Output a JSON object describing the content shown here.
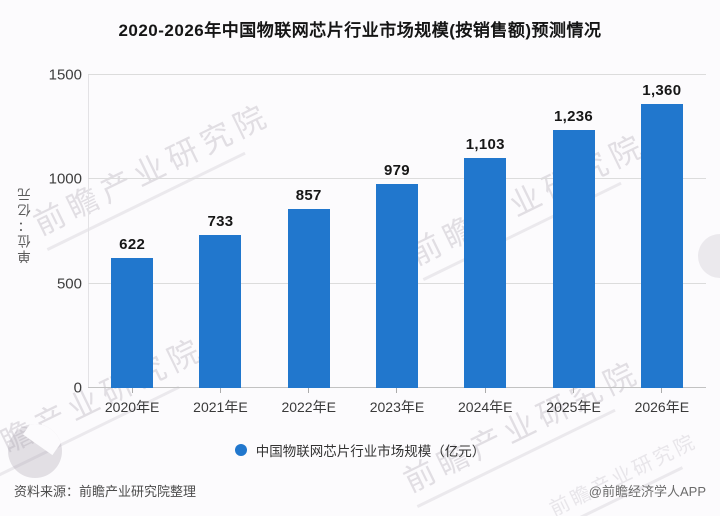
{
  "title": "2020-2026年中国物联网芯片行业市场规模(按销售额)预测情况",
  "chart_data": {
    "type": "bar",
    "title": "2020-2026年中国物联网芯片行业市场规模(按销售额)预测情况",
    "categories": [
      "2020年E",
      "2021年E",
      "2022年E",
      "2023年E",
      "2024年E",
      "2025年E",
      "2026年E"
    ],
    "values": [
      622,
      733,
      857,
      979,
      1103,
      1236,
      1360
    ],
    "value_labels": [
      "622",
      "733",
      "857",
      "979",
      "1,103",
      "1,236",
      "1,360"
    ],
    "xlabel": "",
    "ylabel": "单位：亿元",
    "ylim": [
      0,
      1500
    ],
    "yticks": [
      0,
      500,
      1000,
      1500
    ],
    "grid": true,
    "legend_position": "bottom",
    "bar_color": "#2177cd"
  },
  "legend": {
    "label": "中国物联网芯片行业市场规模（亿元）"
  },
  "footer": {
    "source": "资料来源：前瞻产业研究院整理",
    "credit": "@前瞻经济学人APP"
  },
  "watermark": {
    "text": "前瞻产业研究院"
  },
  "colors": {
    "bar": "#2177cd",
    "grid": "#dcdcdc",
    "baseline": "#c2c2c2",
    "background": "#fcfbfd",
    "watermark": "#a29ca8"
  }
}
